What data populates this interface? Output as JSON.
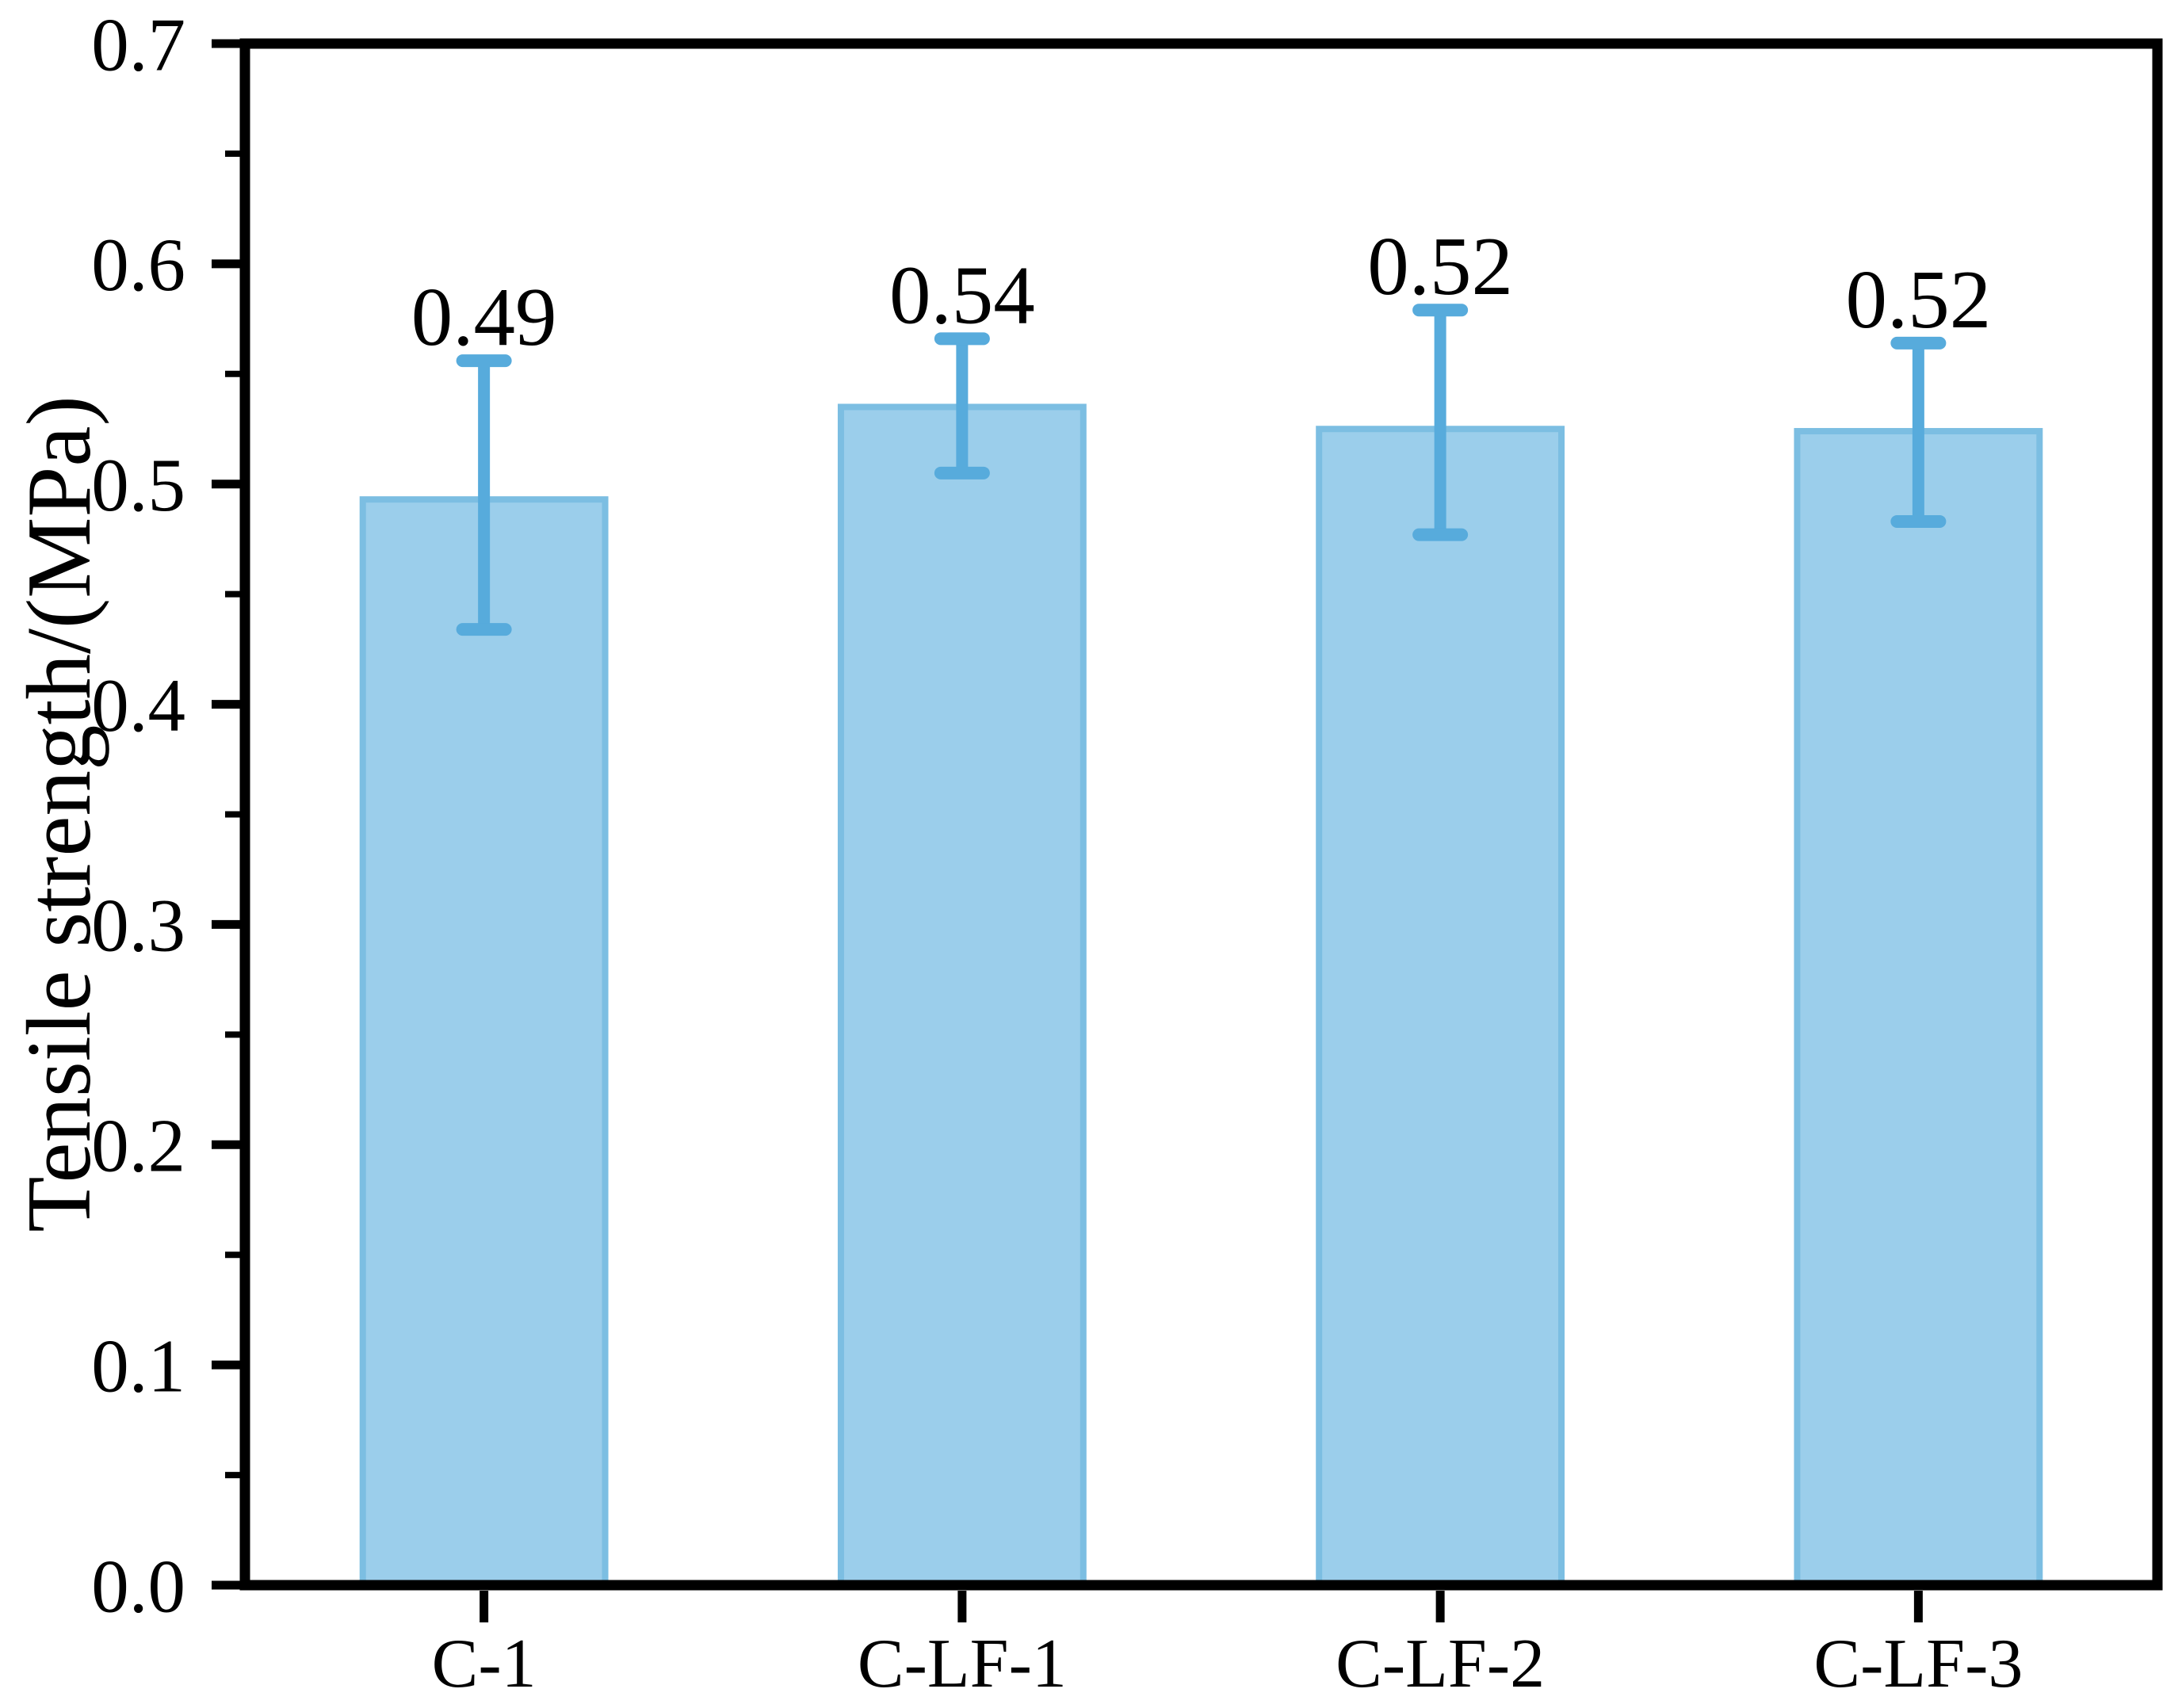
{
  "figure": {
    "background": "#ffffff"
  },
  "chart_data": {
    "type": "bar",
    "title": "",
    "categories": [
      "C-1",
      "C-LF-1",
      "C-LF-2",
      "C-LF-3"
    ],
    "values": [
      0.49,
      0.54,
      0.52,
      0.52
    ],
    "value_labels": [
      "0.49",
      "0.54",
      "0.52",
      "0.52"
    ],
    "bar_tops": [
      0.493,
      0.535,
      0.525,
      0.524
    ],
    "error_low": [
      0.434,
      0.505,
      0.477,
      0.483
    ],
    "error_high": [
      0.556,
      0.566,
      0.579,
      0.564
    ],
    "xlabel": "",
    "ylabel": "Tensile strength/(MPa)",
    "ylim": [
      0,
      0.7
    ],
    "ytick_step": 0.1,
    "ytick_minor_step": 0.05,
    "ytick_labels": [
      "0.0",
      "0.1",
      "0.2",
      "0.3",
      "0.4",
      "0.5",
      "0.6",
      "0.7"
    ],
    "grid": false,
    "legend": null,
    "bar_width_fraction": 0.507,
    "colors": {
      "bar_fill": "#9BCEEB",
      "bar_edge": "#7CBEE2",
      "error_bar": "#57ABDC",
      "axis": "#000000",
      "text": "#000000"
    }
  }
}
